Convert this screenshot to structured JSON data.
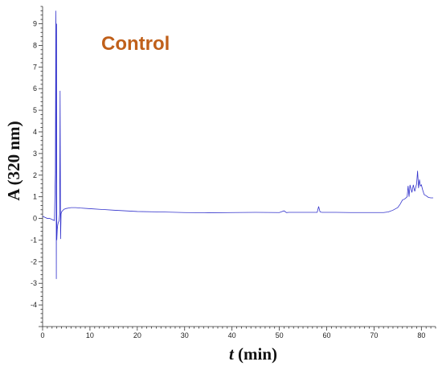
{
  "chart_data": {
    "type": "line",
    "xlabel_italic": "t",
    "xlabel_unit": " (min)",
    "ylabel": "A (320 nm)",
    "annotation": "Control",
    "annotation_color": "#c0601a",
    "line_color": "#3333cc",
    "xlim": [
      0,
      83
    ],
    "ylim": [
      -5,
      9.8
    ],
    "x_ticks": [
      0,
      10,
      20,
      30,
      40,
      50,
      60,
      70,
      80
    ],
    "y_ticks": [
      -4,
      -3,
      -2,
      -1,
      0,
      1,
      2,
      3,
      4,
      5,
      6,
      7,
      8,
      9
    ],
    "grid": false,
    "series": [
      {
        "x": [
          0,
          0.5,
          1.0,
          1.5,
          2.0,
          2.5,
          2.7,
          2.8,
          2.85,
          2.9,
          2.95,
          3.0,
          3.1,
          3.2,
          3.3,
          3.5,
          3.6,
          3.7,
          3.8,
          3.9,
          4.0,
          4.2,
          4.5,
          5.0,
          5.5,
          6.0,
          7.0,
          8.0,
          10,
          15,
          20,
          25,
          30,
          35,
          40,
          45,
          50,
          51,
          51.5,
          52,
          55,
          58,
          58.3,
          58.6,
          59,
          60,
          62,
          65,
          70,
          72,
          73,
          74,
          75,
          75.5,
          76,
          76.5,
          77,
          77.2,
          77.4,
          77.6,
          78,
          78.3,
          78.6,
          79,
          79.2,
          79.4,
          79.6,
          79.8,
          80,
          80.3,
          80.6,
          81,
          81.5,
          82,
          82.5
        ],
        "y": [
          0.1,
          0.05,
          0,
          0,
          -0.05,
          -0.1,
          2.1,
          9.6,
          7.8,
          -2.8,
          9.0,
          -1.0,
          -0.5,
          -0.3,
          -0.2,
          -0.1,
          0.2,
          5.9,
          -0.95,
          0.2,
          0.3,
          0.35,
          0.42,
          0.46,
          0.48,
          0.5,
          0.5,
          0.48,
          0.45,
          0.38,
          0.32,
          0.3,
          0.27,
          0.26,
          0.27,
          0.28,
          0.27,
          0.35,
          0.27,
          0.28,
          0.28,
          0.28,
          0.55,
          0.3,
          0.28,
          0.28,
          0.28,
          0.27,
          0.27,
          0.27,
          0.3,
          0.38,
          0.5,
          0.65,
          0.85,
          0.9,
          1.0,
          1.5,
          1.0,
          1.55,
          1.2,
          1.55,
          1.25,
          1.6,
          2.2,
          1.4,
          1.8,
          1.5,
          1.55,
          1.3,
          1.1,
          1.05,
          0.97,
          0.95,
          0.95
        ]
      }
    ]
  }
}
